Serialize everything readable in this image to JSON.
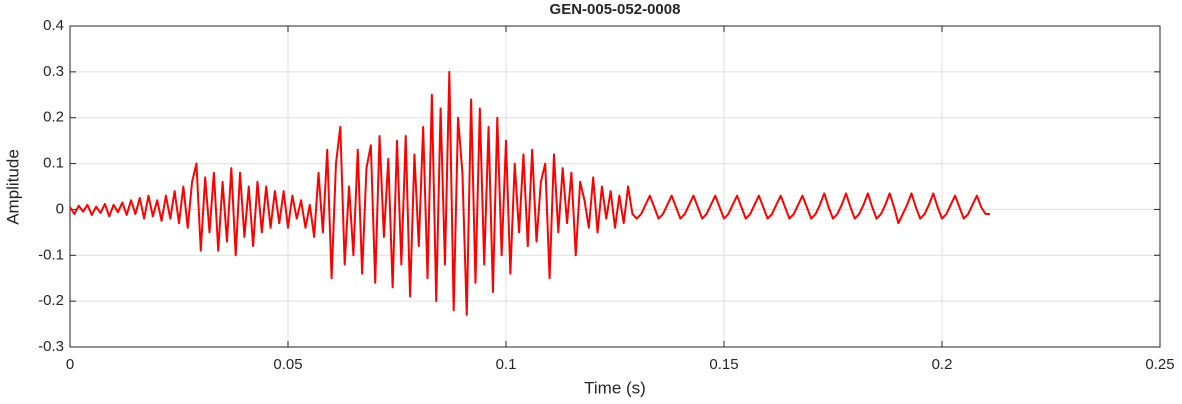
{
  "chart_data": {
    "type": "line",
    "title": "GEN-005-052-0008",
    "x_label": "Time (s)",
    "y_label": "Amplitude",
    "xlim": [
      0,
      0.25
    ],
    "xticks": [
      0,
      0.05,
      0.1,
      0.15,
      0.2,
      0.25
    ],
    "ylim": [
      -0.3,
      0.4
    ],
    "yticks": [
      -0.3,
      -0.2,
      -0.1,
      0,
      0.1,
      0.2,
      0.3,
      0.4
    ],
    "grid": true,
    "series": [
      {
        "color": "#ff0000",
        "x": [
          0,
          0.001,
          0.002,
          0.003,
          0.004,
          0.005,
          0.006,
          0.007,
          0.008,
          0.009,
          0.01,
          0.011,
          0.012,
          0.013,
          0.014,
          0.015,
          0.016,
          0.017,
          0.018,
          0.019,
          0.02,
          0.021,
          0.022,
          0.023,
          0.024,
          0.025,
          0.026,
          0.027,
          0.028,
          0.029,
          0.03,
          0.031,
          0.032,
          0.033,
          0.034,
          0.035,
          0.036,
          0.037,
          0.038,
          0.039,
          0.04,
          0.041,
          0.042,
          0.043,
          0.044,
          0.045,
          0.046,
          0.047,
          0.048,
          0.049,
          0.05,
          0.051,
          0.052,
          0.053,
          0.054,
          0.055,
          0.056,
          0.057,
          0.058,
          0.059,
          0.06,
          0.061,
          0.062,
          0.063,
          0.064,
          0.065,
          0.066,
          0.067,
          0.068,
          0.069,
          0.07,
          0.071,
          0.072,
          0.073,
          0.074,
          0.075,
          0.076,
          0.077,
          0.078,
          0.079,
          0.08,
          0.081,
          0.082,
          0.083,
          0.084,
          0.085,
          0.086,
          0.087,
          0.088,
          0.089,
          0.09,
          0.091,
          0.092,
          0.093,
          0.094,
          0.095,
          0.096,
          0.097,
          0.098,
          0.099,
          0.1,
          0.101,
          0.102,
          0.103,
          0.104,
          0.105,
          0.106,
          0.107,
          0.108,
          0.109,
          0.11,
          0.111,
          0.112,
          0.113,
          0.114,
          0.115,
          0.116,
          0.117,
          0.118,
          0.119,
          0.12,
          0.121,
          0.122,
          0.123,
          0.124,
          0.125,
          0.126,
          0.127,
          0.128,
          0.129,
          0.13,
          0.131,
          0.132,
          0.133,
          0.134,
          0.135,
          0.136,
          0.137,
          0.138,
          0.139,
          0.14,
          0.141,
          0.142,
          0.143,
          0.144,
          0.145,
          0.146,
          0.147,
          0.148,
          0.149,
          0.15,
          0.151,
          0.152,
          0.153,
          0.154,
          0.155,
          0.156,
          0.157,
          0.158,
          0.159,
          0.16,
          0.161,
          0.162,
          0.163,
          0.164,
          0.165,
          0.166,
          0.167,
          0.168,
          0.169,
          0.17,
          0.171,
          0.172,
          0.173,
          0.174,
          0.175,
          0.176,
          0.177,
          0.178,
          0.179,
          0.18,
          0.181,
          0.182,
          0.183,
          0.184,
          0.185,
          0.186,
          0.187,
          0.188,
          0.189,
          0.19,
          0.191,
          0.192,
          0.193,
          0.194,
          0.195,
          0.196,
          0.197,
          0.198,
          0.199,
          0.2,
          0.201,
          0.202,
          0.203,
          0.204,
          0.205,
          0.206,
          0.207,
          0.208,
          0.209,
          0.21,
          0.211
        ],
        "values": [
          0.005,
          -0.01,
          0.008,
          -0.005,
          0.01,
          -0.012,
          0.006,
          -0.008,
          0.012,
          -0.015,
          0.01,
          -0.006,
          0.015,
          -0.012,
          0.02,
          -0.01,
          0.025,
          -0.02,
          0.03,
          -0.015,
          0.02,
          -0.025,
          0.03,
          -0.02,
          0.04,
          -0.03,
          0.05,
          -0.04,
          0.06,
          0.1,
          -0.09,
          0.07,
          -0.05,
          0.08,
          -0.09,
          0.06,
          -0.07,
          0.09,
          -0.1,
          0.08,
          -0.06,
          0.05,
          -0.08,
          0.06,
          -0.05,
          0.05,
          -0.04,
          0.04,
          -0.03,
          0.04,
          -0.04,
          0.03,
          -0.02,
          0.02,
          -0.04,
          0.01,
          -0.06,
          0.08,
          -0.05,
          0.13,
          -0.15,
          0.1,
          0.18,
          -0.12,
          0.05,
          -0.1,
          0.13,
          -0.14,
          0.09,
          0.14,
          -0.16,
          0.16,
          -0.06,
          0.11,
          -0.17,
          0.15,
          -0.12,
          0.16,
          -0.19,
          0.12,
          -0.08,
          0.18,
          -0.15,
          0.25,
          -0.2,
          0.22,
          -0.12,
          0.3,
          -0.22,
          0.2,
          0.08,
          -0.23,
          0.24,
          -0.16,
          0.22,
          -0.12,
          0.18,
          -0.18,
          0.2,
          -0.1,
          0.15,
          -0.14,
          0.1,
          -0.05,
          0.12,
          -0.08,
          0.13,
          -0.07,
          0.06,
          0.1,
          -0.15,
          0.12,
          -0.05,
          0.09,
          -0.03,
          0.08,
          -0.1,
          0.06,
          0.02,
          -0.04,
          0.07,
          -0.05,
          0.05,
          -0.02,
          0.04,
          -0.04,
          0.03,
          -0.03,
          0.05,
          -0.01,
          -0.02,
          -0.01,
          0.01,
          0.03,
          0.005,
          -0.02,
          -0.01,
          0.01,
          0.03,
          0.005,
          -0.02,
          -0.01,
          0.01,
          0.03,
          0.005,
          -0.02,
          -0.01,
          0.01,
          0.03,
          0.005,
          -0.02,
          -0.01,
          0.01,
          0.03,
          0.005,
          -0.02,
          -0.01,
          0.01,
          0.03,
          0.005,
          -0.02,
          -0.01,
          0.01,
          0.03,
          0.005,
          -0.02,
          -0.01,
          0.01,
          0.03,
          0.005,
          -0.02,
          -0.01,
          0.01,
          0.035,
          0.005,
          -0.02,
          -0.01,
          0.01,
          0.035,
          0.005,
          -0.02,
          -0.01,
          0.01,
          0.035,
          0.005,
          -0.02,
          -0.01,
          0.01,
          0.035,
          0.005,
          -0.03,
          -0.01,
          0.01,
          0.035,
          0.005,
          -0.02,
          -0.01,
          0.01,
          0.035,
          0.005,
          -0.02,
          -0.01,
          0.01,
          0.03,
          0.005,
          -0.02,
          -0.01,
          0.01,
          0.03,
          0.005,
          -0.01,
          -0.01
        ]
      }
    ]
  }
}
